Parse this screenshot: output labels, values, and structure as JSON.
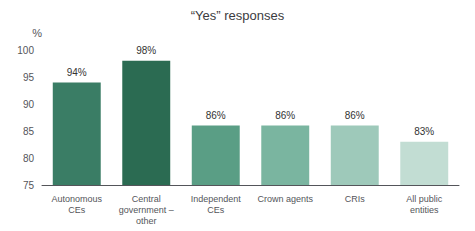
{
  "chart_data": {
    "type": "bar",
    "title": "“Yes” responses",
    "categories": [
      "Autonomous\nCEs",
      "Central\ngovernment –\nother",
      "Independent\nCEs",
      "Crown agents",
      "CRIs",
      "All public\nentities"
    ],
    "values": [
      94,
      98,
      86,
      86,
      86,
      83
    ],
    "value_labels": [
      "94%",
      "98%",
      "86%",
      "86%",
      "86%",
      "83%"
    ],
    "data_labels": true,
    "colors": [
      "#3a7d65",
      "#2b6b52",
      "#5a9e85",
      "#7ab5a0",
      "#9ec9ba",
      "#c2ddd3"
    ],
    "ylabel": "%",
    "ylim": [
      75,
      100
    ],
    "yticks": [
      75,
      80,
      85,
      90,
      95,
      100
    ],
    "grid": false
  }
}
